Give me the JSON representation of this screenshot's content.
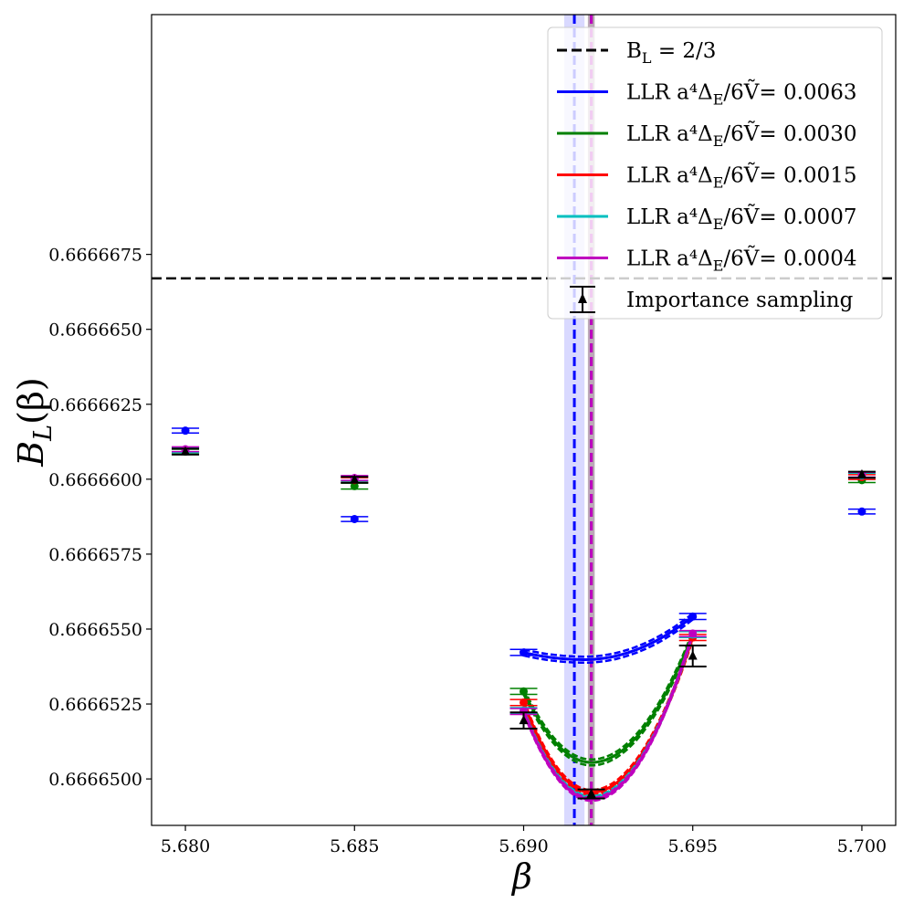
{
  "chart_data": {
    "type": "scatter",
    "xlabel": "β",
    "ylabel_main": "B",
    "ylabel_sub": "L",
    "ylabel_tail": "(β)",
    "xlim": [
      5.679,
      5.701
    ],
    "ylim": [
      0.66664845,
      0.6666755
    ],
    "xticks": [
      5.68,
      5.685,
      5.69,
      5.695,
      5.7
    ],
    "xtick_labels": [
      "5.680",
      "5.685",
      "5.690",
      "5.695",
      "5.700"
    ],
    "yticks": [
      0.66665,
      0.6666525,
      0.666655,
      0.6666575,
      0.66666,
      0.6666625,
      0.666665,
      0.6666675
    ],
    "ytick_labels": [
      "0.6666500",
      "0.6666525",
      "0.6666550",
      "0.6666575",
      "0.6666600",
      "0.6666625",
      "0.6666650",
      "0.6666675"
    ],
    "reference_line": {
      "y": 0.6666667,
      "label": "B_L = 2/3",
      "color": "#000000"
    },
    "legend": {
      "position": "top-right",
      "entries": [
        {
          "label_main": "B",
          "label_sub": "L",
          "label_tail": " = 2/3",
          "style": "dashed",
          "color": "#000000"
        },
        {
          "label_main": "LLR a⁴Δ",
          "label_sub": "E",
          "label_tail": "/6Ṽ= 0.0063",
          "style": "line",
          "color": "#0000ff"
        },
        {
          "label_main": "LLR a⁴Δ",
          "label_sub": "E",
          "label_tail": "/6Ṽ= 0.0030",
          "style": "line",
          "color": "#008000"
        },
        {
          "label_main": "LLR a⁴Δ",
          "label_sub": "E",
          "label_tail": "/6Ṽ= 0.0015",
          "style": "line",
          "color": "#ff0000"
        },
        {
          "label_main": "LLR a⁴Δ",
          "label_sub": "E",
          "label_tail": "/6Ṽ= 0.0007",
          "style": "line",
          "color": "#00bfbf"
        },
        {
          "label_main": "LLR a⁴Δ",
          "label_sub": "E",
          "label_tail": "/6Ṽ= 0.0004",
          "style": "line",
          "color": "#bf00bf"
        },
        {
          "label_main": "Importance sampling",
          "label_sub": "",
          "label_tail": "",
          "style": "errorbar",
          "color": "#000000"
        }
      ]
    },
    "series": [
      {
        "name": "LLR 0.0063",
        "color": "#0000ff",
        "x": [
          5.68,
          5.685,
          5.69,
          5.695,
          5.7
        ],
        "y": [
          0.66666162,
          0.66665867,
          0.66665422,
          0.66665542,
          0.66665892
        ],
        "err": [
          8e-08,
          8e-08,
          1e-07,
          1e-07,
          8e-08
        ],
        "curve": {
          "x0": 5.69,
          "x1": 5.695,
          "xmin": 5.6918,
          "ymin": 0.66665398,
          "band": 1e-07
        },
        "vline": {
          "x": 5.6915,
          "band": 0.0003
        }
      },
      {
        "name": "LLR 0.0030",
        "color": "#008000",
        "x": [
          5.68,
          5.685,
          5.69,
          5.695,
          5.7
        ],
        "y": [
          0.66666092,
          0.66665977,
          0.66665292,
          0.66665482,
          0.66665997
        ],
        "err": [
          8e-08,
          1e-07,
          1e-07,
          1e-07,
          8e-08
        ],
        "curve": {
          "x0": 5.69,
          "x1": 5.695,
          "xmin": 5.692,
          "ymin": 0.66665055,
          "band": 1e-07
        },
        "vline": {
          "x": 5.692,
          "band": 0.0001
        }
      },
      {
        "name": "LLR 0.0015",
        "color": "#ff0000",
        "x": [
          5.68,
          5.685,
          5.69,
          5.695,
          5.7
        ],
        "y": [
          0.66666098,
          0.66665997,
          0.66665255,
          0.66665472,
          0.66666007
        ],
        "err": [
          8e-08,
          8e-08,
          1e-07,
          1e-07,
          8e-08
        ],
        "curve": {
          "x0": 5.69,
          "x1": 5.695,
          "xmin": 5.692,
          "ymin": 0.66664955,
          "band": 8e-08
        },
        "vline": {
          "x": 5.692,
          "band": 0.0001
        }
      },
      {
        "name": "LLR 0.0007",
        "color": "#00bfbf",
        "x": [
          5.68,
          5.685,
          5.69,
          5.695,
          5.7
        ],
        "y": [
          0.66666097,
          0.66666002,
          0.66665228,
          0.66665482,
          0.66666012
        ],
        "err": [
          8e-08,
          8e-08,
          1e-07,
          1e-07,
          8e-08
        ],
        "curve": {
          "x0": 5.69,
          "x1": 5.695,
          "xmin": 5.692,
          "ymin": 0.66664938,
          "band": 5e-08
        },
        "vline": {
          "x": 5.692,
          "band": 0.0001
        }
      },
      {
        "name": "LLR 0.0004",
        "color": "#bf00bf",
        "x": [
          5.68,
          5.685,
          5.69,
          5.695,
          5.7
        ],
        "y": [
          0.666661,
          0.66666004,
          0.66665225,
          0.66665485,
          0.66666015
        ],
        "err": [
          8e-08,
          8e-08,
          1e-07,
          1e-07,
          8e-08
        ],
        "curve": {
          "x0": 5.69,
          "x1": 5.695,
          "xmin": 5.692,
          "ymin": 0.66664932,
          "band": 5e-08
        },
        "vline": {
          "x": 5.692,
          "band": 0.0001
        }
      }
    ],
    "importance_sampling": {
      "name": "Importance sampling",
      "color": "#000000",
      "x": [
        5.68,
        5.685,
        5.69,
        5.692,
        5.695,
        5.7
      ],
      "y": [
        0.66666092,
        0.66665998,
        0.66665195,
        0.6666495,
        0.6666541,
        0.66666015
      ],
      "err": [
        1e-07,
        1e-07,
        2.7e-07,
        1.5e-07,
        3.5e-07,
        1e-07
      ]
    }
  }
}
